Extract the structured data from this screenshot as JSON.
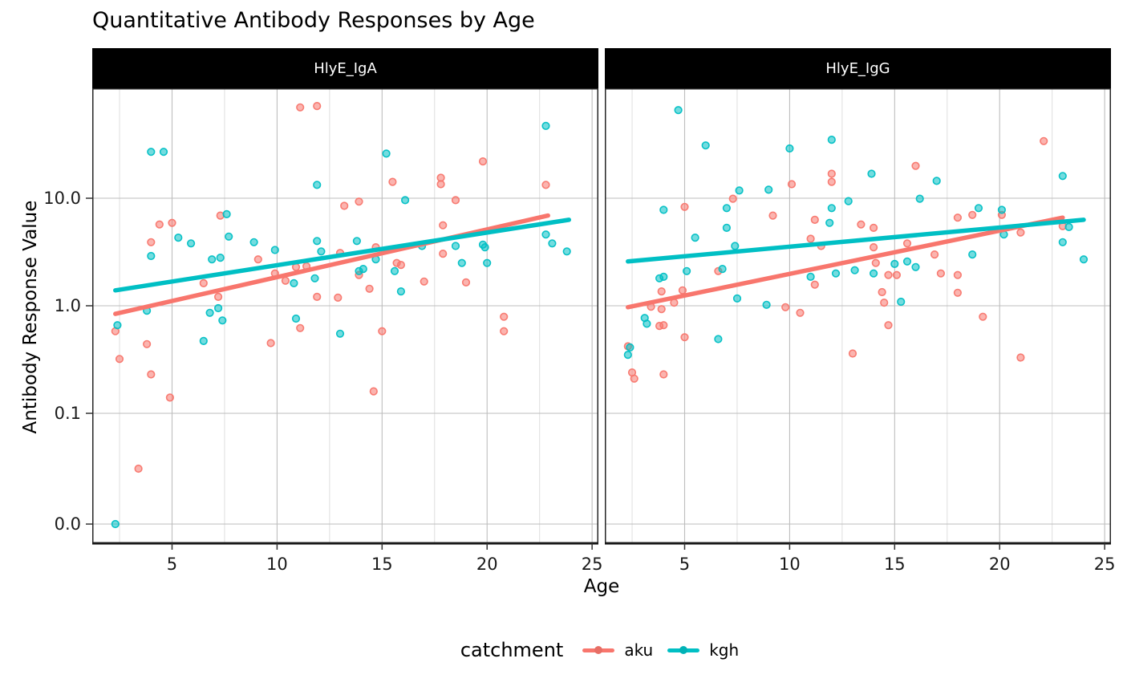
{
  "title": "Quantitative Antibody Responses by Age",
  "axes": {
    "x_label": "Age",
    "y_label": "Antibody Response Value",
    "x_ticks": [
      5,
      10,
      15,
      20,
      25
    ],
    "y_tick_labels": [
      "10.0",
      "1.0",
      "0.1",
      "0.0"
    ],
    "y_tick_values": [
      10,
      1,
      0.1,
      0
    ]
  },
  "legend": {
    "title": "catchment",
    "position": "bottom",
    "items": [
      {
        "label": "aku",
        "color": "#F8766D"
      },
      {
        "label": "kgh",
        "color": "#00BFC4"
      }
    ]
  },
  "colors": {
    "aku": "#F8766D",
    "kgh": "#00BFC4",
    "strip_bg": "#000000",
    "strip_text": "#ffffff",
    "grid_major": "#BDBDBD",
    "grid_minor": "#DEDEDE",
    "panel_border": "#262626"
  },
  "chart_data": {
    "type": "scatter",
    "title": "Quantitative Antibody Responses by Age",
    "xlabel": "Age",
    "ylabel": "Antibody Response Value",
    "x_ticks": [
      5,
      10,
      15,
      20,
      25
    ],
    "x_minor_ticks": [
      2.5,
      7.5,
      12.5,
      17.5,
      22.5
    ],
    "y_ticks": [
      10,
      1,
      0.1,
      0
    ],
    "x_domain": [
      1.2,
      25.3
    ],
    "y_scale": "pseudo-log: logarithmic above 0.1, linear from 0 to 0.1",
    "grid": true,
    "legend_position": "bottom",
    "facets": [
      {
        "label": "HlyE_IgA",
        "series": [
          {
            "name": "aku",
            "color": "#F8766D",
            "points": [
              [
                11.1,
                70
              ],
              [
                11.9,
                72
              ],
              [
                19.8,
                22
              ],
              [
                15.5,
                14.2
              ],
              [
                17.8,
                15.5
              ],
              [
                17.8,
                13.5
              ],
              [
                22.8,
                13.3
              ],
              [
                13.2,
                8.5
              ],
              [
                13.9,
                9.3
              ],
              [
                18.5,
                9.6
              ],
              [
                4.4,
                5.7
              ],
              [
                5.0,
                5.9
              ],
              [
                7.3,
                6.9
              ],
              [
                4.0,
                3.9
              ],
              [
                17.9,
                5.6
              ],
              [
                13.0,
                3.1
              ],
              [
                14.7,
                3.5
              ],
              [
                17.9,
                3.05
              ],
              [
                15.7,
                2.5
              ],
              [
                15.9,
                2.4
              ],
              [
                17.0,
                1.68
              ],
              [
                19.0,
                1.65
              ],
              [
                14.4,
                1.44
              ],
              [
                13.9,
                1.93
              ],
              [
                9.1,
                2.7
              ],
              [
                9.9,
                2.0
              ],
              [
                10.4,
                1.71
              ],
              [
                10.9,
                2.29
              ],
              [
                11.4,
                2.33
              ],
              [
                6.5,
                1.62
              ],
              [
                7.2,
                1.21
              ],
              [
                11.9,
                1.21
              ],
              [
                12.9,
                1.19
              ],
              [
                20.8,
                0.79
              ],
              [
                20.8,
                0.58
              ],
              [
                15.0,
                0.58
              ],
              [
                14.6,
                0.16
              ],
              [
                2.3,
                0.58
              ],
              [
                3.8,
                0.44
              ],
              [
                2.5,
                0.32
              ],
              [
                4.0,
                0.23
              ],
              [
                4.9,
                0.14
              ],
              [
                9.7,
                0.45
              ],
              [
                11.1,
                0.62
              ],
              [
                3.4,
                0.05
              ]
            ]
          },
          {
            "name": "kgh",
            "color": "#00BFC4",
            "points": [
              [
                4.0,
                27
              ],
              [
                4.6,
                27
              ],
              [
                11.9,
                13.3
              ],
              [
                22.8,
                47
              ],
              [
                15.2,
                26
              ],
              [
                16.1,
                9.6
              ],
              [
                13.8,
                4.0
              ],
              [
                14.7,
                2.7
              ],
              [
                13.9,
                2.1
              ],
              [
                14.1,
                2.2
              ],
              [
                16.9,
                3.6
              ],
              [
                18.5,
                3.6
              ],
              [
                19.8,
                3.7
              ],
              [
                19.9,
                3.5
              ],
              [
                18.8,
                2.5
              ],
              [
                20.0,
                2.5
              ],
              [
                15.6,
                2.1
              ],
              [
                15.9,
                1.36
              ],
              [
                22.8,
                4.6
              ],
              [
                23.1,
                3.8
              ],
              [
                23.8,
                3.2
              ],
              [
                5.3,
                4.3
              ],
              [
                5.9,
                3.8
              ],
              [
                4.0,
                2.9
              ],
              [
                7.6,
                7.1
              ],
              [
                7.7,
                4.4
              ],
              [
                8.9,
                3.9
              ],
              [
                9.9,
                3.3
              ],
              [
                6.9,
                2.7
              ],
              [
                7.3,
                2.8
              ],
              [
                10.8,
                1.62
              ],
              [
                11.8,
                1.8
              ],
              [
                11.9,
                4.0
              ],
              [
                12.1,
                3.2
              ],
              [
                6.5,
                0.47
              ],
              [
                6.8,
                0.86
              ],
              [
                7.2,
                0.95
              ],
              [
                7.4,
                0.73
              ],
              [
                3.8,
                0.9
              ],
              [
                2.4,
                0.66
              ],
              [
                10.9,
                0.76
              ],
              [
                13.0,
                0.55
              ],
              [
                2.3,
                0
              ]
            ]
          }
        ],
        "smooth_lines": [
          {
            "name": "aku",
            "color": "#F8766D",
            "x": [
              2.3,
              22.9
            ],
            "y": [
              0.84,
              6.9
            ]
          },
          {
            "name": "kgh",
            "color": "#00BFC4",
            "x": [
              2.3,
              23.9
            ],
            "y": [
              1.39,
              6.3
            ]
          }
        ]
      },
      {
        "label": "HlyE_IgG",
        "series": [
          {
            "name": "aku",
            "color": "#F8766D",
            "points": [
              [
                22.1,
                34
              ],
              [
                16.0,
                20
              ],
              [
                12.0,
                16.9
              ],
              [
                12.0,
                14.2
              ],
              [
                10.1,
                13.5
              ],
              [
                7.3,
                9.9
              ],
              [
                5.0,
                8.3
              ],
              [
                9.2,
                6.9
              ],
              [
                11.2,
                6.3
              ],
              [
                11.0,
                4.2
              ],
              [
                11.5,
                3.6
              ],
              [
                6.6,
                2.1
              ],
              [
                11.2,
                1.57
              ],
              [
                3.9,
                1.36
              ],
              [
                4.9,
                1.39
              ],
              [
                4.5,
                1.07
              ],
              [
                3.4,
                0.98
              ],
              [
                3.9,
                0.93
              ],
              [
                9.8,
                0.97
              ],
              [
                10.5,
                0.86
              ],
              [
                13.4,
                5.7
              ],
              [
                14.0,
                5.3
              ],
              [
                18.0,
                6.6
              ],
              [
                18.7,
                7.0
              ],
              [
                20.1,
                7.0
              ],
              [
                23.0,
                5.5
              ],
              [
                21.0,
                4.8
              ],
              [
                14.0,
                3.5
              ],
              [
                15.6,
                3.8
              ],
              [
                16.9,
                3.0
              ],
              [
                14.1,
                2.5
              ],
              [
                14.7,
                1.93
              ],
              [
                15.1,
                1.93
              ],
              [
                17.2,
                2.0
              ],
              [
                18.0,
                1.93
              ],
              [
                18.0,
                1.32
              ],
              [
                14.4,
                1.34
              ],
              [
                14.5,
                1.07
              ],
              [
                19.2,
                0.79
              ],
              [
                14.7,
                0.66
              ],
              [
                13.0,
                0.36
              ],
              [
                21.0,
                0.33
              ],
              [
                3.8,
                0.65
              ],
              [
                4.0,
                0.66
              ],
              [
                5.0,
                0.51
              ],
              [
                2.3,
                0.42
              ],
              [
                2.5,
                0.24
              ],
              [
                2.6,
                0.21
              ],
              [
                4.0,
                0.23
              ]
            ]
          },
          {
            "name": "kgh",
            "color": "#00BFC4",
            "points": [
              [
                4.7,
                66
              ],
              [
                6.0,
                31
              ],
              [
                12.0,
                35
              ],
              [
                10.0,
                29
              ],
              [
                9.0,
                12.0
              ],
              [
                7.6,
                11.8
              ],
              [
                13.9,
                16.9
              ],
              [
                17.0,
                14.5
              ],
              [
                23.0,
                16.1
              ],
              [
                4.0,
                7.8
              ],
              [
                7.0,
                8.1
              ],
              [
                7.0,
                5.3
              ],
              [
                12.0,
                8.1
              ],
              [
                11.9,
                5.9
              ],
              [
                16.2,
                9.9
              ],
              [
                19.0,
                8.1
              ],
              [
                20.1,
                7.8
              ],
              [
                12.8,
                9.4
              ],
              [
                5.5,
                4.3
              ],
              [
                7.4,
                3.6
              ],
              [
                11.0,
                1.86
              ],
              [
                12.2,
                2.0
              ],
              [
                5.1,
                2.1
              ],
              [
                6.8,
                2.2
              ],
              [
                3.8,
                1.8
              ],
              [
                4.0,
                1.86
              ],
              [
                7.5,
                1.17
              ],
              [
                8.9,
                1.02
              ],
              [
                3.1,
                0.77
              ],
              [
                3.2,
                0.68
              ],
              [
                6.6,
                0.49
              ],
              [
                2.4,
                0.41
              ],
              [
                2.3,
                0.35
              ],
              [
                15.0,
                2.45
              ],
              [
                15.6,
                2.58
              ],
              [
                16.0,
                2.29
              ],
              [
                13.1,
                2.14
              ],
              [
                14.0,
                2.0
              ],
              [
                18.7,
                3.0
              ],
              [
                23.0,
                3.9
              ],
              [
                24.0,
                2.7
              ],
              [
                23.3,
                5.4
              ],
              [
                20.2,
                4.6
              ],
              [
                15.3,
                1.09
              ]
            ]
          }
        ],
        "smooth_lines": [
          {
            "name": "aku",
            "color": "#F8766D",
            "x": [
              2.3,
              23.0
            ],
            "y": [
              0.97,
              6.6
            ]
          },
          {
            "name": "kgh",
            "color": "#00BFC4",
            "x": [
              2.3,
              24.0
            ],
            "y": [
              2.58,
              6.3
            ]
          }
        ]
      }
    ]
  }
}
